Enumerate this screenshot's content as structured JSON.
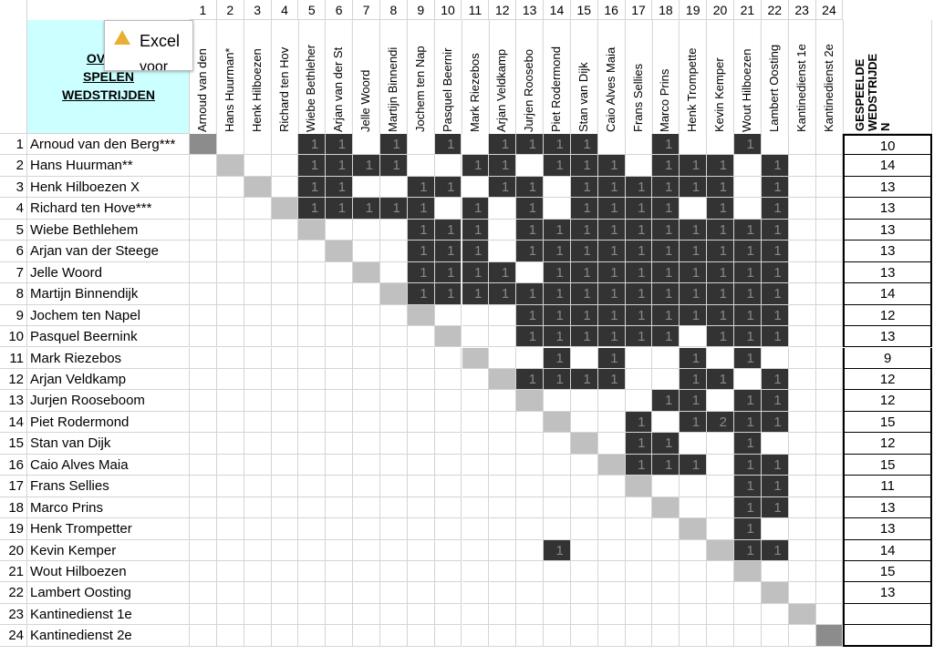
{
  "sheet": {
    "title_lines": [
      "OVERZ",
      "SPELEN",
      "WEDSTRIJDEN"
    ],
    "popup": {
      "title": "Excel",
      "text": "voor"
    },
    "column_numbers": [
      1,
      2,
      3,
      4,
      5,
      6,
      7,
      8,
      9,
      10,
      11,
      12,
      13,
      14,
      15,
      16,
      17,
      18,
      19,
      20,
      21,
      22,
      23,
      24
    ],
    "column_names": [
      "Arnoud van den",
      "Hans Huurman*",
      "Henk Hilboezen",
      "Richard ten Hov",
      "Wiebe Bethleher",
      "Arjan van der St",
      "Jelle Woord",
      "Martijn Binnendi",
      "Jochem ten Nap",
      "Pasquel Beernir",
      "Mark Riezebos",
      "Arjan Veldkamp",
      "Jurjen Roosebo",
      "Piet Rodermond",
      "Stan van Dijk",
      "Caio Alves Maia",
      "Frans Sellies",
      "Marco Prins",
      "Henk Trompette",
      "Kevin Kemper",
      "Wout Hilboezen",
      "Lambert Oosting",
      "Kantinedienst 1e",
      "Kantinedienst 2e"
    ],
    "total_header": [
      "GESPEELDE",
      "WEDSTRIJDE",
      "N"
    ],
    "rows": [
      {
        "number": 1,
        "name": "Arnoud van den Berg***",
        "total": 10,
        "cells": [
          null,
          null,
          null,
          null,
          1,
          1,
          null,
          1,
          null,
          1,
          null,
          1,
          1,
          1,
          1,
          null,
          null,
          1,
          null,
          null,
          1,
          null,
          null,
          null
        ]
      },
      {
        "number": 2,
        "name": "Hans Huurman**",
        "total": 14,
        "cells": [
          null,
          null,
          null,
          null,
          1,
          1,
          1,
          1,
          null,
          null,
          1,
          1,
          null,
          1,
          1,
          1,
          null,
          1,
          1,
          1,
          null,
          1,
          null,
          null
        ]
      },
      {
        "number": 3,
        "name": "Henk Hilboezen X",
        "total": 13,
        "cells": [
          null,
          null,
          null,
          null,
          1,
          1,
          null,
          null,
          1,
          1,
          null,
          1,
          1,
          null,
          1,
          1,
          1,
          1,
          1,
          1,
          null,
          1,
          null,
          null
        ]
      },
      {
        "number": 4,
        "name": "Richard ten Hove***",
        "total": 13,
        "cells": [
          null,
          null,
          null,
          null,
          1,
          1,
          1,
          1,
          1,
          null,
          1,
          null,
          1,
          null,
          1,
          1,
          1,
          1,
          null,
          1,
          null,
          1,
          null,
          null
        ]
      },
      {
        "number": 5,
        "name": "Wiebe Bethlehem",
        "total": 13,
        "cells": [
          null,
          null,
          null,
          null,
          null,
          null,
          null,
          null,
          1,
          1,
          1,
          null,
          1,
          1,
          1,
          1,
          1,
          1,
          1,
          1,
          1,
          1,
          null,
          null
        ]
      },
      {
        "number": 6,
        "name": "Arjan van der Steege",
        "total": 13,
        "cells": [
          null,
          null,
          null,
          null,
          null,
          null,
          null,
          null,
          1,
          1,
          1,
          null,
          1,
          1,
          1,
          1,
          1,
          1,
          1,
          1,
          1,
          1,
          null,
          null
        ]
      },
      {
        "number": 7,
        "name": "Jelle Woord",
        "total": 13,
        "cells": [
          null,
          null,
          null,
          null,
          null,
          null,
          null,
          null,
          1,
          1,
          1,
          1,
          null,
          1,
          1,
          1,
          1,
          1,
          1,
          1,
          1,
          1,
          null,
          null
        ]
      },
      {
        "number": 8,
        "name": "Martijn Binnendijk",
        "total": 14,
        "cells": [
          null,
          null,
          null,
          null,
          null,
          null,
          null,
          null,
          1,
          1,
          1,
          1,
          1,
          1,
          1,
          1,
          1,
          1,
          1,
          1,
          1,
          1,
          null,
          null
        ]
      },
      {
        "number": 9,
        "name": "Jochem ten Napel",
        "total": 12,
        "cells": [
          null,
          null,
          null,
          null,
          null,
          null,
          null,
          null,
          null,
          null,
          null,
          null,
          1,
          1,
          1,
          1,
          1,
          1,
          1,
          1,
          1,
          1,
          null,
          null
        ]
      },
      {
        "number": 10,
        "name": "Pasquel Beernink",
        "total": 13,
        "cells": [
          null,
          null,
          null,
          null,
          null,
          null,
          null,
          null,
          null,
          null,
          null,
          null,
          1,
          1,
          1,
          1,
          1,
          1,
          null,
          1,
          1,
          1,
          null,
          null
        ]
      },
      {
        "number": 11,
        "name": "Mark Riezebos",
        "total": 9,
        "cells": [
          null,
          null,
          null,
          null,
          null,
          null,
          null,
          null,
          null,
          null,
          null,
          null,
          null,
          1,
          null,
          1,
          null,
          null,
          1,
          null,
          1,
          null,
          null,
          null
        ]
      },
      {
        "number": 12,
        "name": "Arjan Veldkamp",
        "total": 12,
        "cells": [
          null,
          null,
          null,
          null,
          null,
          null,
          null,
          null,
          null,
          null,
          null,
          null,
          1,
          1,
          1,
          1,
          null,
          null,
          1,
          1,
          null,
          1,
          null,
          null
        ]
      },
      {
        "number": 13,
        "name": "Jurjen Rooseboom",
        "total": 12,
        "cells": [
          null,
          null,
          null,
          null,
          null,
          null,
          null,
          null,
          null,
          null,
          null,
          null,
          null,
          null,
          null,
          null,
          null,
          1,
          1,
          null,
          1,
          1,
          null,
          null
        ]
      },
      {
        "number": 14,
        "name": "Piet Rodermond",
        "total": 15,
        "cells": [
          null,
          null,
          null,
          null,
          null,
          null,
          null,
          null,
          null,
          null,
          null,
          null,
          null,
          null,
          null,
          null,
          1,
          null,
          1,
          2,
          1,
          1,
          null,
          null
        ]
      },
      {
        "number": 15,
        "name": "Stan van Dijk",
        "total": 12,
        "cells": [
          null,
          null,
          null,
          null,
          null,
          null,
          null,
          null,
          null,
          null,
          null,
          null,
          null,
          null,
          null,
          null,
          1,
          1,
          null,
          null,
          1,
          null,
          null,
          null
        ]
      },
      {
        "number": 16,
        "name": "Caio Alves Maia",
        "total": 15,
        "cells": [
          null,
          null,
          null,
          null,
          null,
          null,
          null,
          null,
          null,
          null,
          null,
          null,
          null,
          null,
          null,
          null,
          1,
          1,
          1,
          null,
          1,
          1,
          null,
          null
        ]
      },
      {
        "number": 17,
        "name": "Frans Sellies",
        "total": 11,
        "cells": [
          null,
          null,
          null,
          null,
          null,
          null,
          null,
          null,
          null,
          null,
          null,
          null,
          null,
          null,
          null,
          null,
          null,
          null,
          null,
          null,
          1,
          1,
          null,
          null
        ]
      },
      {
        "number": 18,
        "name": "Marco Prins",
        "total": 13,
        "cells": [
          null,
          null,
          null,
          null,
          null,
          null,
          null,
          null,
          null,
          null,
          null,
          null,
          null,
          null,
          null,
          null,
          null,
          null,
          null,
          null,
          1,
          1,
          null,
          null
        ]
      },
      {
        "number": 19,
        "name": "Henk Trompetter",
        "total": 13,
        "cells": [
          null,
          null,
          null,
          null,
          null,
          null,
          null,
          null,
          null,
          null,
          null,
          null,
          null,
          null,
          null,
          null,
          null,
          null,
          null,
          null,
          1,
          null,
          null,
          null
        ]
      },
      {
        "number": 20,
        "name": "Kevin Kemper",
        "total": 14,
        "cells": [
          null,
          null,
          null,
          null,
          null,
          null,
          null,
          null,
          null,
          null,
          null,
          null,
          null,
          1,
          null,
          null,
          null,
          null,
          null,
          null,
          1,
          1,
          null,
          null
        ]
      },
      {
        "number": 21,
        "name": "Wout Hilboezen",
        "total": 15,
        "cells": [
          null,
          null,
          null,
          null,
          null,
          null,
          null,
          null,
          null,
          null,
          null,
          null,
          null,
          null,
          null,
          null,
          null,
          null,
          null,
          null,
          null,
          null,
          null,
          null
        ]
      },
      {
        "number": 22,
        "name": "Lambert Oosting",
        "total": 13,
        "cells": [
          null,
          null,
          null,
          null,
          null,
          null,
          null,
          null,
          null,
          null,
          null,
          null,
          null,
          null,
          null,
          null,
          null,
          null,
          null,
          null,
          null,
          null,
          null,
          null
        ]
      },
      {
        "number": 23,
        "name": "Kantinedienst 1e",
        "total": null,
        "cells": [
          null,
          null,
          null,
          null,
          null,
          null,
          null,
          null,
          null,
          null,
          null,
          null,
          null,
          null,
          null,
          null,
          null,
          null,
          null,
          null,
          null,
          null,
          null,
          null
        ]
      },
      {
        "number": 24,
        "name": "Kantinedienst 2e",
        "total": null,
        "cells": [
          null,
          null,
          null,
          null,
          null,
          null,
          null,
          null,
          null,
          null,
          null,
          null,
          null,
          null,
          null,
          null,
          null,
          null,
          null,
          null,
          null,
          null,
          null,
          null
        ]
      }
    ]
  }
}
